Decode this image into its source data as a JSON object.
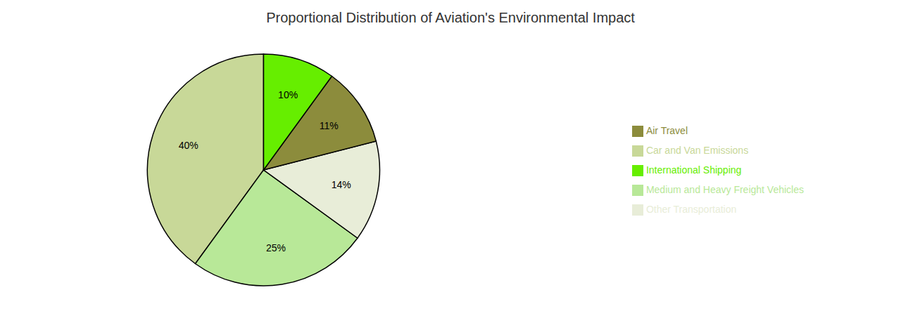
{
  "chart_data": {
    "type": "pie",
    "title": "Proportional Distribution of Aviation's Environmental Impact",
    "categories": [
      "Car and Van Emissions",
      "Medium and Heavy Freight Vehicles",
      "Other Transportation",
      "Air Travel",
      "International Shipping"
    ],
    "values": [
      40,
      25,
      14,
      11,
      10
    ],
    "value_labels": [
      "40%",
      "25%",
      "14%",
      "11%",
      "10%"
    ],
    "colors": [
      "#c8d898",
      "#b8e898",
      "#e8edd8",
      "#8c8c3c",
      "#66ee00"
    ],
    "data_labels": true,
    "legend": "right"
  }
}
